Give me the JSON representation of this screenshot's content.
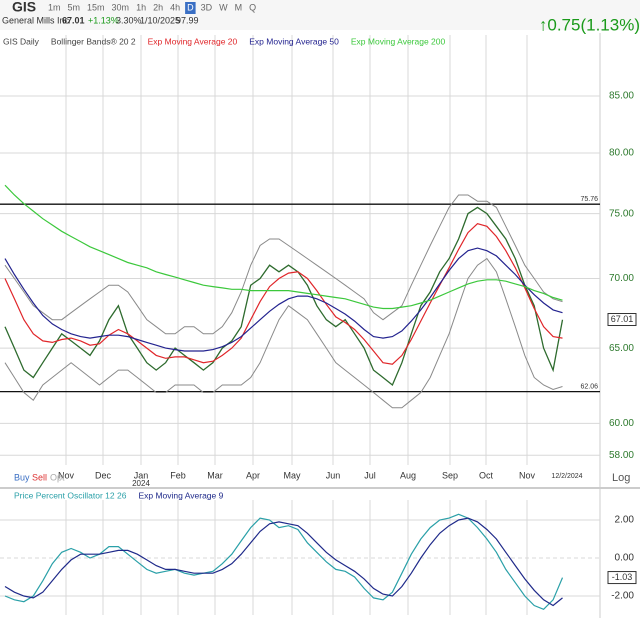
{
  "header": {
    "symbol": "GIS",
    "intervals": [
      "1m",
      "5m",
      "15m",
      "30m",
      "1h",
      "2h",
      "4h",
      "D",
      "3D",
      "W",
      "M",
      "Q"
    ],
    "name": "General Mills Inc",
    "price": "67.01",
    "change_pct": "+1.13%",
    "range_pct": "3.30%",
    "date": "1/10/2025",
    "volume": "97.99",
    "change": "↑0.75(1.13%)"
  },
  "chart_data": [
    {
      "type": "line",
      "log_scale": true,
      "grid": true,
      "ylim": [
        57.4,
        90.7
      ],
      "yticks": [
        {
          "value": 85,
          "label": "85.00"
        },
        {
          "value": 80,
          "label": "80.00"
        },
        {
          "value": 75,
          "label": "75.00"
        },
        {
          "value": 70,
          "label": "70.00"
        },
        {
          "value": 65,
          "label": "65.00"
        },
        {
          "value": 60,
          "label": "60.00"
        },
        {
          "value": 58,
          "label": "58.00"
        }
      ],
      "xticks": [
        "Nov",
        "Dec",
        "Jan",
        "Feb",
        "Mar",
        "Apr",
        "May",
        "Jun",
        "Jul",
        "Aug",
        "Sep",
        "Oct",
        "Nov",
        "12/2/2024"
      ],
      "year_label": "2024",
      "annotations": [
        {
          "value": 75.76,
          "label": "75.76"
        },
        {
          "value": 62.06,
          "label": "62.06"
        }
      ],
      "last": {
        "value": 67.01,
        "label": "67.01"
      },
      "buttons": [
        "Buy",
        "Sell",
        "Opt"
      ],
      "scale_label": "Log",
      "series": [
        {
          "name": "GIS Daily",
          "color": "#2e6b2e",
          "values": [
            66.5,
            65,
            63.5,
            63,
            64,
            65,
            66,
            65.5,
            65,
            64.5,
            65.5,
            67,
            68,
            66,
            65,
            64,
            63.5,
            64,
            65,
            64.5,
            64,
            63.5,
            64,
            65,
            65.5,
            66.5,
            69.5,
            70,
            71,
            70.5,
            71,
            70.5,
            69.5,
            68,
            67,
            66.5,
            67,
            66,
            65,
            63.5,
            63,
            62.5,
            64,
            66,
            68,
            69,
            70.5,
            71.5,
            73,
            75,
            75.5,
            75,
            74,
            73,
            71.5,
            69.5,
            68,
            65,
            63.5,
            67
          ]
        },
        {
          "name": "Bollinger Bands® 20 2",
          "color": "#8a8a8a",
          "upper": [
            71,
            70,
            69,
            68,
            67.5,
            67,
            67,
            67.5,
            68,
            68.5,
            69,
            69.5,
            69.5,
            69,
            68,
            67,
            66.5,
            66,
            66,
            66.5,
            66.5,
            66,
            66,
            66.5,
            67.5,
            69,
            71,
            72.5,
            73,
            73,
            72.5,
            72,
            71.5,
            71,
            70.5,
            70,
            69.5,
            69,
            68.5,
            67.5,
            67,
            67.5,
            68,
            69.5,
            71,
            72.5,
            74,
            75.5,
            76.5,
            76.5,
            76,
            76,
            75.5,
            74,
            72.5,
            71,
            70,
            69,
            68.5,
            68.3
          ],
          "lower": [
            64,
            63,
            62,
            61.5,
            62.5,
            63,
            63.5,
            64,
            63.5,
            63,
            62.5,
            63,
            63.5,
            63.5,
            63,
            62.5,
            62,
            62,
            62.5,
            62.5,
            62.5,
            62,
            62,
            62.5,
            62.5,
            62.5,
            63,
            64,
            65.5,
            67,
            68,
            67.5,
            67,
            66,
            65,
            64,
            63.5,
            63,
            62.5,
            62,
            61.5,
            61,
            61,
            61.5,
            62,
            63,
            64.5,
            66,
            68,
            70,
            71,
            71.5,
            70.5,
            68.5,
            66.5,
            64.5,
            63,
            62.5,
            62.2,
            62.4
          ]
        },
        {
          "name": "Exp Moving Average 20",
          "color": "#e0262a",
          "values": [
            70,
            68.5,
            67,
            66,
            65.5,
            65.4,
            65.6,
            65.7,
            65.5,
            65.2,
            65.3,
            65.9,
            66.3,
            66,
            65.5,
            65,
            64.5,
            64.3,
            64.4,
            64.4,
            64.2,
            64,
            64.1,
            64.5,
            65,
            65.7,
            67,
            68.3,
            69.4,
            70,
            70.4,
            70.5,
            70,
            69.1,
            68.1,
            67.2,
            66.8,
            66.3,
            65.6,
            64.8,
            64,
            63.9,
            64.5,
            65.6,
            66.9,
            68.2,
            69.5,
            70.8,
            72.2,
            73.5,
            74.2,
            74,
            73.2,
            72.1,
            70.8,
            69.3,
            67.8,
            66.5,
            65.8,
            65.7
          ]
        },
        {
          "name": "Exp Moving Average 50",
          "color": "#23238f",
          "values": [
            71.5,
            70.3,
            69.2,
            68.2,
            67.3,
            66.7,
            66.3,
            66,
            65.8,
            65.7,
            65.8,
            65.9,
            65.9,
            65.8,
            65.6,
            65.4,
            65.2,
            65,
            64.9,
            64.8,
            64.8,
            64.8,
            64.9,
            65.1,
            65.4,
            65.8,
            66.4,
            67,
            67.6,
            68.1,
            68.5,
            68.7,
            68.7,
            68.5,
            68.2,
            67.8,
            67.4,
            66.9,
            66.3,
            65.8,
            65.7,
            65.8,
            66.2,
            66.9,
            67.7,
            68.6,
            69.6,
            70.6,
            71.5,
            72.1,
            72.3,
            72.1,
            71.7,
            71,
            70.3,
            69.5,
            68.8,
            68.2,
            67.7,
            67.5
          ]
        },
        {
          "name": "Exp Moving Average 200",
          "color": "#3cc83c",
          "values": [
            77.3,
            76.5,
            75.8,
            75.2,
            74.6,
            74.1,
            73.6,
            73.2,
            72.8,
            72.4,
            72.1,
            71.8,
            71.5,
            71.2,
            71,
            70.8,
            70.5,
            70.3,
            70.1,
            69.9,
            69.7,
            69.5,
            69.4,
            69.3,
            69.2,
            69.2,
            69.1,
            69.1,
            69.1,
            69.1,
            69.1,
            69,
            68.9,
            68.8,
            68.7,
            68.6,
            68.5,
            68.3,
            68.1,
            67.9,
            67.8,
            67.8,
            67.9,
            68,
            68.2,
            68.4,
            68.7,
            69,
            69.3,
            69.6,
            69.8,
            69.9,
            69.9,
            69.8,
            69.6,
            69.4,
            69.1,
            68.9,
            68.6,
            68.4
          ]
        }
      ]
    },
    {
      "type": "line",
      "grid": true,
      "ylim": [
        -3,
        3.05
      ],
      "yticks": [
        {
          "value": 2,
          "label": "2.00"
        },
        {
          "value": 0,
          "label": "0.00"
        },
        {
          "value": -2,
          "label": "-2.00"
        }
      ],
      "last": {
        "value": -1.03,
        "label": "-1.03"
      },
      "series": [
        {
          "name": "Price Percent Oscillator 12 26",
          "color": "#2aa0a8",
          "values": [
            -2,
            -2.2,
            -2.3,
            -2,
            -1.2,
            -0.3,
            0.3,
            0.5,
            0.3,
            0,
            0.2,
            0.6,
            0.6,
            0.2,
            -0.2,
            -0.6,
            -0.8,
            -0.7,
            -0.6,
            -0.8,
            -0.9,
            -0.8,
            -0.7,
            -0.3,
            0.2,
            0.9,
            1.6,
            2.1,
            2,
            1.6,
            1.7,
            1.5,
            0.8,
            0.3,
            -0.2,
            -0.6,
            -0.7,
            -1,
            -1.6,
            -2.1,
            -2.2,
            -1.8,
            -0.8,
            0.2,
            1,
            1.6,
            2,
            2.1,
            2.3,
            2.1,
            1.6,
            1,
            0.3,
            -0.6,
            -1.3,
            -2,
            -2.5,
            -2.7,
            -2.2,
            -1.03
          ]
        },
        {
          "name": "Exp Moving Average 9",
          "color": "#1f2a8a",
          "values": [
            -1.5,
            -1.8,
            -2,
            -2.1,
            -1.8,
            -1.2,
            -0.6,
            -0.1,
            0.2,
            0.2,
            0.2,
            0.3,
            0.4,
            0.4,
            0.2,
            -0.1,
            -0.4,
            -0.6,
            -0.6,
            -0.7,
            -0.8,
            -0.8,
            -0.8,
            -0.6,
            -0.3,
            0.2,
            0.8,
            1.4,
            1.8,
            1.9,
            1.8,
            1.7,
            1.3,
            0.8,
            0.3,
            -0.1,
            -0.4,
            -0.7,
            -1.1,
            -1.6,
            -1.9,
            -2,
            -1.5,
            -0.8,
            0,
            0.7,
            1.3,
            1.7,
            2,
            2.1,
            1.9,
            1.5,
            1,
            0.3,
            -0.4,
            -1.1,
            -1.7,
            -2.2,
            -2.5,
            -2.1
          ]
        }
      ]
    }
  ]
}
